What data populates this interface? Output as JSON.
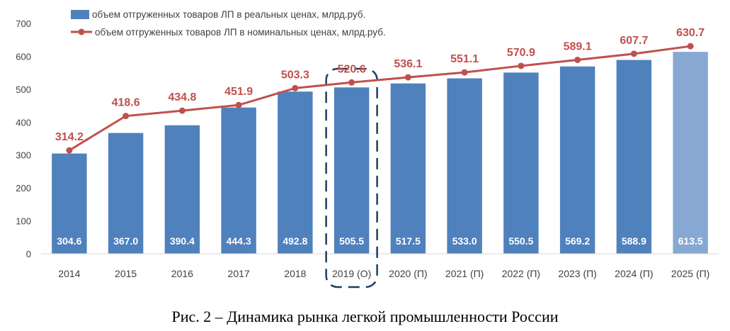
{
  "caption": "Рис. 2 – Динамика рынка легкой промышленности России",
  "colors": {
    "bar": "#4f81bd",
    "bar_forecast_last": "#86a8d2",
    "line": "#c0504d",
    "highlight": "#1f3d63"
  },
  "chart_data": {
    "type": "bar",
    "categories": [
      "2014",
      "2015",
      "2016",
      "2017",
      "2018",
      "2019 (О)",
      "2020 (П)",
      "2021 (П)",
      "2022 (П)",
      "2023 (П)",
      "2024 (П)",
      "2025 (П)"
    ],
    "series": [
      {
        "name": "объем отгруженных товаров ЛП в реальных ценах, млрд.руб.",
        "type": "bar",
        "values": [
          304.6,
          367.0,
          390.4,
          444.3,
          492.8,
          505.5,
          517.5,
          533.0,
          550.5,
          569.2,
          588.9,
          613.5
        ],
        "labels": [
          "304.6",
          "367.0",
          "390.4",
          "444.3",
          "492.8",
          "505.5",
          "517.5",
          "533.0",
          "550.5",
          "569.2",
          "588.9",
          "613.5"
        ]
      },
      {
        "name": "объем отгруженных товаров ЛП в номинальных ценах, млрд.руб.",
        "type": "line",
        "values": [
          314.2,
          418.6,
          434.8,
          451.9,
          503.3,
          520.6,
          536.1,
          551.1,
          570.9,
          589.1,
          607.7,
          630.7
        ],
        "labels": [
          "314.2",
          "418.6",
          "434.8",
          "451.9",
          "503.3",
          "520.6",
          "536.1",
          "551.1",
          "570.9",
          "589.1",
          "607.7",
          "630.7"
        ]
      }
    ],
    "ylim": [
      0,
      700
    ],
    "yticks": [
      "0",
      "100",
      "200",
      "300",
      "400",
      "500",
      "600",
      "700"
    ],
    "grid": false,
    "legend": "top-left",
    "highlighted_category": "2019 (О)"
  }
}
